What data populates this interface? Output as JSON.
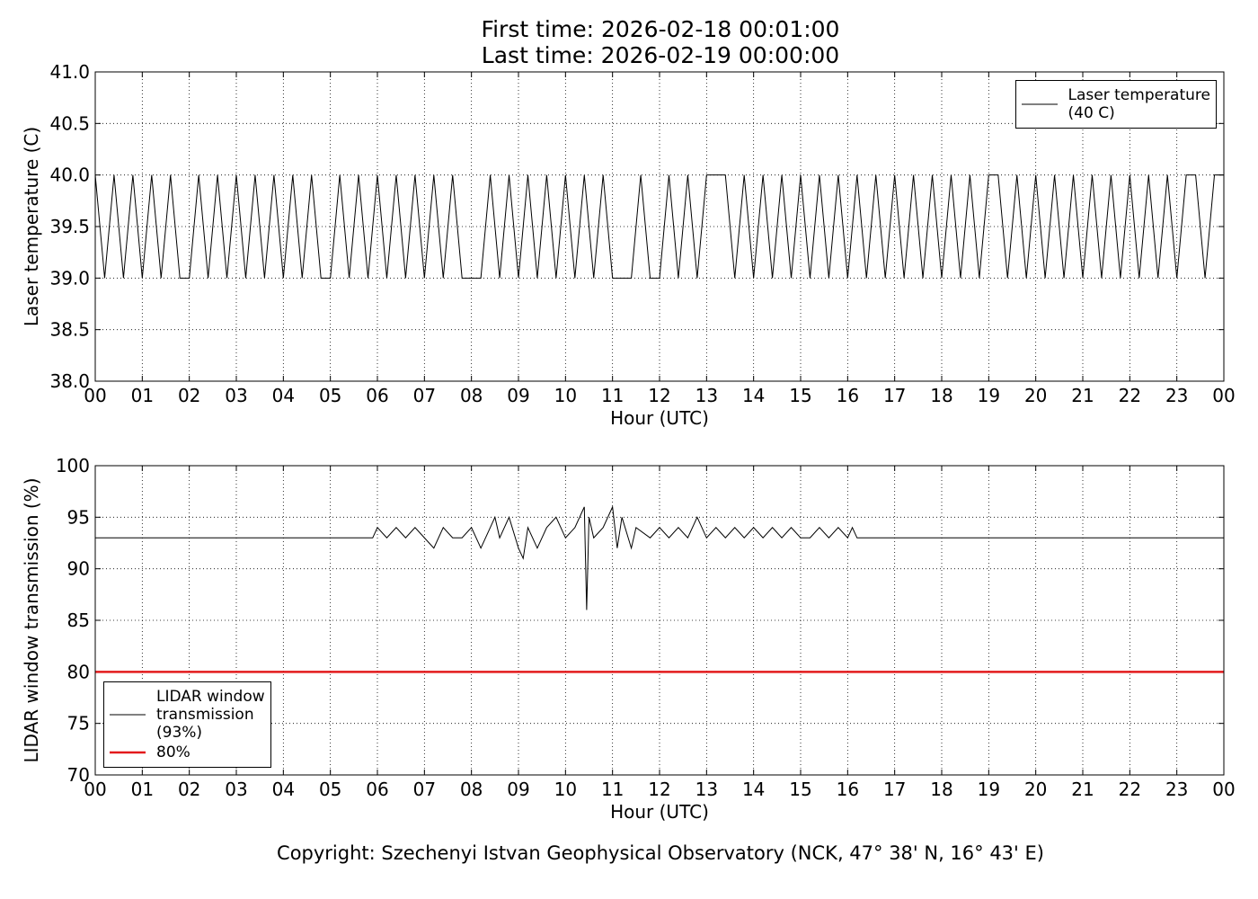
{
  "chart_data": [
    {
      "type": "line",
      "title": "First time: 2026-02-18 00:01:00\nLast time: 2026-02-19 00:00:00",
      "xlabel": "Hour (UTC)",
      "ylabel": "Laser temperature (C)",
      "xlim": [
        0,
        24
      ],
      "ylim": [
        38,
        41
      ],
      "xticks": [
        {
          "value": 0,
          "label": "00"
        },
        {
          "value": 1,
          "label": "01"
        },
        {
          "value": 2,
          "label": "02"
        },
        {
          "value": 3,
          "label": "03"
        },
        {
          "value": 4,
          "label": "04"
        },
        {
          "value": 5,
          "label": "05"
        },
        {
          "value": 6,
          "label": "06"
        },
        {
          "value": 7,
          "label": "07"
        },
        {
          "value": 8,
          "label": "08"
        },
        {
          "value": 9,
          "label": "09"
        },
        {
          "value": 10,
          "label": "10"
        },
        {
          "value": 11,
          "label": "11"
        },
        {
          "value": 12,
          "label": "12"
        },
        {
          "value": 13,
          "label": "13"
        },
        {
          "value": 14,
          "label": "14"
        },
        {
          "value": 15,
          "label": "15"
        },
        {
          "value": 16,
          "label": "16"
        },
        {
          "value": 17,
          "label": "17"
        },
        {
          "value": 18,
          "label": "18"
        },
        {
          "value": 19,
          "label": "19"
        },
        {
          "value": 20,
          "label": "20"
        },
        {
          "value": 21,
          "label": "21"
        },
        {
          "value": 22,
          "label": "22"
        },
        {
          "value": 23,
          "label": "23"
        },
        {
          "value": 24,
          "label": "00"
        }
      ],
      "yticks": [
        {
          "value": 38,
          "label": "38.0"
        },
        {
          "value": 38.5,
          "label": "38.5"
        },
        {
          "value": 39,
          "label": "39.0"
        },
        {
          "value": 39.5,
          "label": "39.5"
        },
        {
          "value": 40,
          "label": "40.0"
        },
        {
          "value": 40.5,
          "label": "40.5"
        },
        {
          "value": 41,
          "label": "41.0"
        }
      ],
      "grid": true,
      "legend": "upper right",
      "series": [
        {
          "name": "Laser temperature\n(40 C)",
          "color": "#000000",
          "x": [
            0,
            0.2,
            0.4,
            0.6,
            0.8,
            1,
            1.2,
            1.4,
            1.6,
            1.8,
            2,
            2.2,
            2.4,
            2.6,
            2.8,
            3,
            3.2,
            3.4,
            3.6,
            3.8,
            4,
            4.2,
            4.4,
            4.6,
            4.8,
            5,
            5.2,
            5.4,
            5.6,
            5.8,
            6,
            6.2,
            6.4,
            6.6,
            6.8,
            7,
            7.2,
            7.4,
            7.6,
            7.8,
            8,
            8.2,
            8.4,
            8.6,
            8.8,
            9,
            9.2,
            9.4,
            9.6,
            9.8,
            10,
            10.2,
            10.4,
            10.6,
            10.8,
            11,
            11.2,
            11.4,
            11.6,
            11.8,
            12,
            12.2,
            12.4,
            12.6,
            12.8,
            13,
            13.2,
            13.4,
            13.6,
            13.8,
            14,
            14.2,
            14.4,
            14.6,
            14.8,
            15,
            15.2,
            15.4,
            15.6,
            15.8,
            16,
            16.2,
            16.4,
            16.6,
            16.8,
            17,
            17.2,
            17.4,
            17.6,
            17.8,
            18,
            18.2,
            18.4,
            18.6,
            18.8,
            19,
            19.2,
            19.4,
            19.6,
            19.8,
            20,
            20.2,
            20.4,
            20.6,
            20.8,
            21,
            21.2,
            21.4,
            21.6,
            21.8,
            22,
            22.2,
            22.4,
            22.6,
            22.8,
            23,
            23.2,
            23.4,
            23.6,
            23.8,
            24
          ],
          "values": [
            40,
            39,
            40,
            39,
            40,
            39,
            40,
            39,
            40,
            39,
            39,
            40,
            39,
            40,
            39,
            40,
            39,
            40,
            39,
            40,
            39,
            40,
            39,
            40,
            39,
            39,
            40,
            39,
            40,
            39,
            40,
            39,
            40,
            39,
            40,
            39,
            40,
            39,
            40,
            39,
            39,
            39,
            40,
            39,
            40,
            39,
            40,
            39,
            40,
            39,
            40,
            39,
            40,
            39,
            40,
            39,
            39,
            39,
            40,
            39,
            39,
            40,
            39,
            40,
            39,
            40,
            40,
            40,
            39,
            40,
            39,
            40,
            39,
            40,
            39,
            40,
            39,
            40,
            39,
            40,
            39,
            40,
            39,
            40,
            39,
            40,
            39,
            40,
            39,
            40,
            39,
            40,
            39,
            40,
            39,
            40,
            40,
            39,
            40,
            39,
            40,
            39,
            40,
            39,
            40,
            39,
            40,
            39,
            40,
            39,
            40,
            39,
            40,
            39,
            40,
            39,
            40,
            40,
            39,
            40,
            40
          ]
        }
      ]
    },
    {
      "type": "line",
      "xlabel": "Hour (UTC)",
      "ylabel": "LIDAR window transmission (%)",
      "xlim": [
        0,
        24
      ],
      "ylim": [
        70,
        100
      ],
      "xticks": [
        {
          "value": 0,
          "label": "00"
        },
        {
          "value": 1,
          "label": "01"
        },
        {
          "value": 2,
          "label": "02"
        },
        {
          "value": 3,
          "label": "03"
        },
        {
          "value": 4,
          "label": "04"
        },
        {
          "value": 5,
          "label": "05"
        },
        {
          "value": 6,
          "label": "06"
        },
        {
          "value": 7,
          "label": "07"
        },
        {
          "value": 8,
          "label": "08"
        },
        {
          "value": 9,
          "label": "09"
        },
        {
          "value": 10,
          "label": "10"
        },
        {
          "value": 11,
          "label": "11"
        },
        {
          "value": 12,
          "label": "12"
        },
        {
          "value": 13,
          "label": "13"
        },
        {
          "value": 14,
          "label": "14"
        },
        {
          "value": 15,
          "label": "15"
        },
        {
          "value": 16,
          "label": "16"
        },
        {
          "value": 17,
          "label": "17"
        },
        {
          "value": 18,
          "label": "18"
        },
        {
          "value": 19,
          "label": "19"
        },
        {
          "value": 20,
          "label": "20"
        },
        {
          "value": 21,
          "label": "21"
        },
        {
          "value": 22,
          "label": "22"
        },
        {
          "value": 23,
          "label": "23"
        },
        {
          "value": 24,
          "label": "00"
        }
      ],
      "yticks": [
        70,
        75,
        80,
        85,
        90,
        95,
        100
      ],
      "grid": true,
      "legend": "lower left",
      "series": [
        {
          "name": "LIDAR window\ntransmission\n(93%)",
          "color": "#000000",
          "x": [
            0,
            5.9,
            6,
            6.2,
            6.4,
            6.6,
            6.8,
            7,
            7.2,
            7.4,
            7.6,
            7.8,
            8,
            8.2,
            8.4,
            8.5,
            8.6,
            8.8,
            9,
            9.1,
            9.2,
            9.4,
            9.6,
            9.8,
            10,
            10.2,
            10.4,
            10.45,
            10.5,
            10.6,
            10.8,
            11,
            11.1,
            11.2,
            11.4,
            11.5,
            11.8,
            12,
            12.2,
            12.4,
            12.6,
            12.8,
            13,
            13.2,
            13.4,
            13.6,
            13.8,
            14,
            14.2,
            14.4,
            14.6,
            14.8,
            15,
            15.2,
            15.4,
            15.6,
            15.8,
            16,
            16.1,
            16.2,
            24
          ],
          "values": [
            93,
            93,
            94,
            93,
            94,
            93,
            94,
            93,
            92,
            94,
            93,
            93,
            94,
            92,
            94,
            95,
            93,
            95,
            92,
            91,
            94,
            92,
            94,
            95,
            93,
            94,
            96,
            86,
            95,
            93,
            94,
            96,
            92,
            95,
            92,
            94,
            93,
            94,
            93,
            94,
            93,
            95,
            93,
            94,
            93,
            94,
            93,
            94,
            93,
            94,
            93,
            94,
            93,
            93,
            94,
            93,
            94,
            93,
            94,
            93,
            93
          ]
        },
        {
          "name": "80%",
          "color": "#e31a1c",
          "x": [
            0,
            24
          ],
          "values": [
            80,
            80
          ]
        }
      ]
    }
  ],
  "footer": "Copyright: Szechenyi Istvan Geophysical Observatory (NCK, 47° 38' N, 16° 43' E)"
}
